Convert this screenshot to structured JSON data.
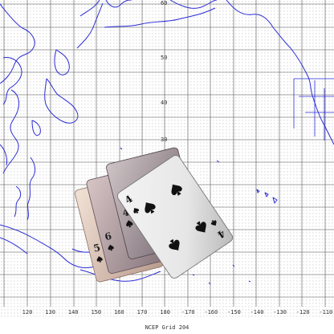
{
  "map": {
    "caption": "NCEP Grid 204",
    "lat_labels": [
      "60",
      "50",
      "40",
      "30"
    ],
    "lon_labels": [
      "120",
      "130",
      "140",
      "150",
      "160",
      "170",
      "180",
      "-170",
      "-160",
      "-150",
      "-140",
      "-130",
      "-120",
      "-110"
    ],
    "colors": {
      "coastline": "#2c2cd8",
      "grid": "#555555",
      "background": "#ffffff"
    }
  },
  "cards": [
    {
      "rank": "5",
      "suit": "spade"
    },
    {
      "rank": "6",
      "suit": "spade"
    },
    {
      "rank": "4",
      "suit": "spade"
    },
    {
      "rank": "4",
      "suit": "spade"
    }
  ]
}
